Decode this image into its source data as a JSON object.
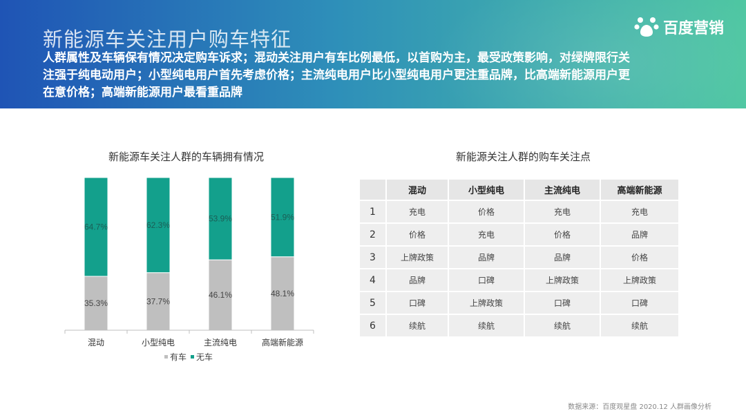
{
  "header": {
    "title": "新能源车关注用户购车特征",
    "subtitle": "人群属性及车辆保有情况决定购车诉求；混动关注用户有车比例最低，以首购为主，最受政策影响，对绿牌限行关注强于纯电动用户；小型纯电用户首先考虑价格；主流纯电用户比小型纯电用户更注重品牌，比高端新能源用户更在意价格；高端新能源用户最看重品牌",
    "logo_text": "百度营销",
    "logo_icon": "paw-icon"
  },
  "chart_data": {
    "type": "bar",
    "stacked": true,
    "title": "新能源车关注人群的车辆拥有情况",
    "categories": [
      "混动",
      "小型纯电",
      "主流纯电",
      "高端新能源"
    ],
    "series": [
      {
        "name": "有车",
        "values": [
          35.3,
          37.7,
          46.1,
          48.1
        ],
        "labels": [
          "35.3%",
          "37.7%",
          "46.1%",
          "48.1%"
        ],
        "color": "#bfbfbf"
      },
      {
        "name": "无车",
        "values": [
          64.7,
          62.3,
          53.9,
          51.9
        ],
        "labels": [
          "64.7%",
          "62.3%",
          "53.9%",
          "51.9%"
        ],
        "color": "#13a08c"
      }
    ],
    "ylim": [
      0,
      100
    ],
    "grid": false,
    "legend": "bottom"
  },
  "table": {
    "title": "新能源关注人群的购车关注点",
    "headers": [
      "",
      "混动",
      "小型纯电",
      "主流纯电",
      "高端新能源"
    ],
    "rows": [
      [
        "1",
        "充电",
        "价格",
        "充电",
        "充电"
      ],
      [
        "2",
        "价格",
        "充电",
        "价格",
        "品牌"
      ],
      [
        "3",
        "上牌政策",
        "品牌",
        "品牌",
        "价格"
      ],
      [
        "4",
        "品牌",
        "口碑",
        "上牌政策",
        "上牌政策"
      ],
      [
        "5",
        "口碑",
        "上牌政策",
        "口碑",
        "口碑"
      ],
      [
        "6",
        "续航",
        "续航",
        "续航",
        "续航"
      ]
    ]
  },
  "footer": {
    "source": "数据来源：百度观星盘 2020.12 人群画像分析"
  }
}
